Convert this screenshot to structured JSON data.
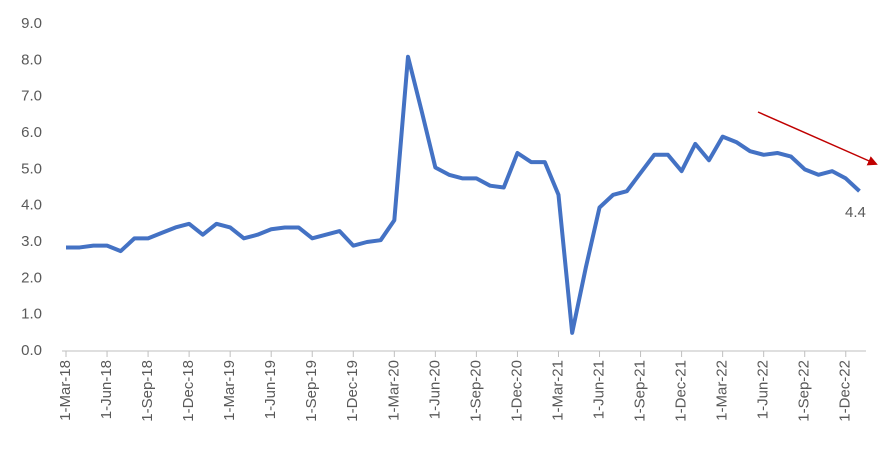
{
  "chart_data": {
    "type": "line",
    "categories": [
      "1-Mar-18",
      null,
      null,
      "1-Jun-18",
      null,
      null,
      "1-Sep-18",
      null,
      null,
      "1-Dec-18",
      null,
      null,
      "1-Mar-19",
      null,
      null,
      "1-Jun-19",
      null,
      null,
      "1-Sep-19",
      null,
      null,
      "1-Dec-19",
      null,
      null,
      "1-Mar-20",
      null,
      null,
      "1-Jun-20",
      null,
      null,
      "1-Sep-20",
      null,
      null,
      "1-Dec-20",
      null,
      null,
      "1-Mar-21",
      null,
      null,
      "1-Jun-21",
      null,
      null,
      "1-Sep-21",
      null,
      null,
      "1-Dec-21",
      null,
      null,
      "1-Mar-22",
      null,
      null,
      "1-Jun-22",
      null,
      null,
      "1-Sep-22",
      null,
      null,
      "1-Dec-22",
      null
    ],
    "series": [
      {
        "color": "#4472c4",
        "values": [
          2.85,
          2.85,
          2.9,
          2.9,
          2.75,
          3.1,
          3.1,
          3.25,
          3.4,
          3.5,
          3.2,
          3.5,
          3.4,
          3.1,
          3.2,
          3.35,
          3.4,
          3.4,
          3.1,
          3.2,
          3.3,
          2.9,
          3.0,
          3.05,
          3.6,
          8.1,
          6.6,
          5.05,
          4.85,
          4.75,
          4.75,
          4.55,
          4.5,
          5.45,
          5.2,
          5.2,
          4.3,
          0.5,
          2.3,
          3.95,
          4.3,
          4.4,
          4.9,
          5.4,
          5.4,
          4.95,
          5.7,
          5.25,
          5.9,
          5.75,
          5.5,
          5.4,
          5.45,
          5.35,
          5.0,
          4.85,
          4.95,
          4.75,
          4.4
        ]
      }
    ],
    "ylim": [
      0,
      9
    ],
    "yticks": [
      {
        "value": 0,
        "label": "0.0"
      },
      {
        "value": 1,
        "label": "1.0"
      },
      {
        "value": 2,
        "label": "2.0"
      },
      {
        "value": 3,
        "label": "3.0"
      },
      {
        "value": 4,
        "label": "4.0"
      },
      {
        "value": 5,
        "label": "5.0"
      },
      {
        "value": 6,
        "label": "6.0"
      },
      {
        "value": 7,
        "label": "7.0"
      },
      {
        "value": 8,
        "label": "8.0"
      },
      {
        "value": 9,
        "label": "9.0"
      }
    ],
    "grid": false
  }
}
